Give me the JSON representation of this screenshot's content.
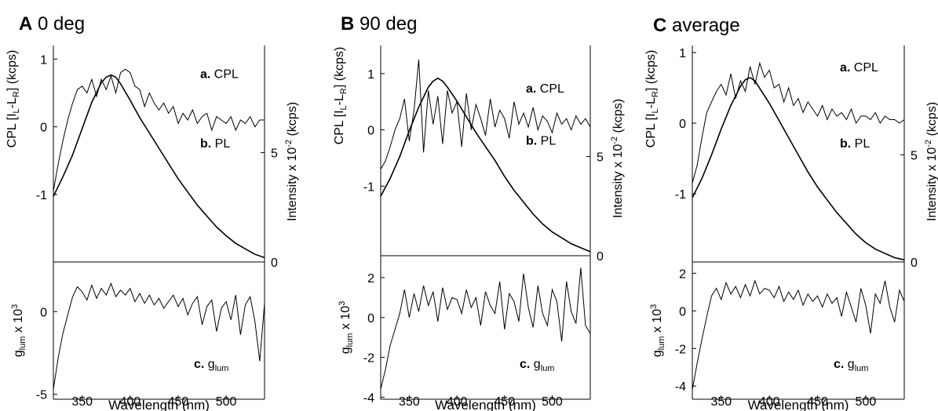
{
  "chart_data": [
    {
      "type": "line",
      "panel_letter": "A",
      "title": "0 deg",
      "xlabel": "Wavelength (nm)",
      "xlim": [
        320,
        540
      ],
      "x_ticks": [
        350,
        400,
        450,
        500
      ],
      "top": {
        "ylabel_left": "CPL [I",
        "ylabel_sub1": "L",
        "ylabel_mid": "-L",
        "ylabel_sub2": "R",
        "ylabel_end": "] (kcps)",
        "cpl_ylim": [
          -1.3,
          1.2
        ],
        "cpl_ticks": [
          1,
          0,
          -1
        ],
        "pl_ylim": [
          0,
          9.9
        ],
        "pl_ticks": [
          5,
          0
        ],
        "ylabel_right": "Intensity x 10",
        "ylabel_right_sup": "-2",
        "ylabel_right_end": " (kcps)",
        "series": [
          {
            "name": "CPL",
            "label_bold": "a.",
            "label_text": " CPL",
            "x": [
              320,
              325,
              330,
              335,
              340,
              345,
              350,
              355,
              360,
              365,
              370,
              375,
              380,
              385,
              390,
              395,
              400,
              405,
              410,
              415,
              420,
              425,
              430,
              435,
              440,
              445,
              450,
              455,
              460,
              465,
              470,
              475,
              480,
              485,
              490,
              495,
              500,
              505,
              510,
              515,
              520,
              525,
              530,
              535,
              540
            ],
            "values": [
              -0.95,
              -0.55,
              -0.2,
              0.1,
              0.35,
              0.55,
              0.6,
              0.5,
              0.7,
              0.45,
              0.7,
              0.55,
              0.75,
              0.5,
              0.8,
              0.85,
              0.8,
              0.6,
              0.55,
              0.3,
              0.5,
              0.35,
              0.25,
              0.35,
              0.2,
              0.3,
              0.05,
              0.2,
              0.1,
              0.25,
              0.05,
              0.15,
              0.2,
              -0.05,
              0.15,
              0.1,
              0.05,
              0.15,
              -0.05,
              0.1,
              0.05,
              0.15,
              0.0,
              0.1,
              0.1
            ]
          },
          {
            "name": "PL",
            "label_bold": "b.",
            "label_text": " PL",
            "x": [
              320,
              330,
              340,
              350,
              360,
              370,
              375,
              380,
              385,
              390,
              400,
              410,
              420,
              430,
              440,
              450,
              460,
              470,
              480,
              490,
              500,
              510,
              520,
              530,
              540
            ],
            "values": [
              3.0,
              3.9,
              4.9,
              6.1,
              7.3,
              8.2,
              8.45,
              8.55,
              8.45,
              8.15,
              7.4,
              6.6,
              5.9,
              5.2,
              4.5,
              3.8,
              3.2,
              2.6,
              2.1,
              1.6,
              1.2,
              0.85,
              0.6,
              0.35,
              0.2
            ]
          }
        ]
      },
      "bottom": {
        "ylabel_g": "g",
        "ylabel_sub": "lum",
        "ylabel_end": " x 10",
        "ylabel_sup": "3",
        "ylim": [
          -5.3,
          3.0
        ],
        "ticks": [
          0,
          -5
        ],
        "series": [
          {
            "name": "glum",
            "label_bold": "c.",
            "label_g": " g",
            "label_sub": "lum",
            "x": [
              320,
              325,
              330,
              335,
              340,
              345,
              350,
              355,
              360,
              365,
              370,
              375,
              380,
              385,
              390,
              395,
              400,
              405,
              410,
              415,
              420,
              425,
              430,
              435,
              440,
              445,
              450,
              455,
              460,
              465,
              470,
              475,
              480,
              485,
              490,
              495,
              500,
              505,
              510,
              515,
              520,
              525,
              530,
              535,
              540
            ],
            "values": [
              -4.7,
              -2.8,
              -1.3,
              -0.2,
              0.9,
              1.5,
              1.2,
              0.7,
              1.6,
              0.8,
              1.4,
              1.0,
              1.7,
              0.9,
              1.3,
              1.0,
              1.4,
              0.6,
              1.1,
              0.5,
              1.0,
              0.4,
              0.8,
              0.2,
              0.6,
              1.0,
              0.3,
              0.8,
              -0.2,
              0.5,
              0.9,
              -0.8,
              0.3,
              0.7,
              -1.2,
              0.2,
              0.6,
              -0.5,
              1.0,
              -1.4,
              0.4,
              0.9,
              -0.6,
              -3.0,
              0.5
            ]
          }
        ]
      }
    },
    {
      "type": "line",
      "panel_letter": "B",
      "title": "90 deg",
      "xlabel": "Wavelength (nm)",
      "xlim": [
        320,
        540
      ],
      "x_ticks": [
        350,
        400,
        450,
        500
      ],
      "top": {
        "ylabel_left": "CPL [I",
        "ylabel_sub1": "L",
        "ylabel_mid": "-L",
        "ylabel_sub2": "R",
        "ylabel_end": "] (kcps)",
        "cpl_ylim": [
          -1.4,
          1.5
        ],
        "cpl_ticks": [
          1,
          0,
          -1
        ],
        "pl_ylim": [
          0,
          10.6
        ],
        "pl_ticks": [
          5,
          0
        ],
        "ylabel_right": "Intensity x 10",
        "ylabel_right_sup": "-2",
        "ylabel_right_end": " (kcps)",
        "series": [
          {
            "name": "CPL",
            "label_bold": "a.",
            "label_text": " CPL",
            "x": [
              320,
              325,
              330,
              335,
              340,
              345,
              350,
              355,
              360,
              365,
              370,
              375,
              380,
              385,
              390,
              395,
              400,
              405,
              410,
              415,
              420,
              425,
              430,
              435,
              440,
              445,
              450,
              455,
              460,
              465,
              470,
              475,
              480,
              485,
              490,
              495,
              500,
              505,
              510,
              515,
              520,
              525,
              530,
              535,
              540
            ],
            "values": [
              -0.7,
              -0.55,
              -0.3,
              0.0,
              0.2,
              0.55,
              -0.2,
              0.35,
              1.25,
              -0.4,
              0.7,
              0.1,
              0.6,
              -0.25,
              0.7,
              0.3,
              0.5,
              -0.3,
              0.65,
              0.0,
              0.45,
              0.2,
              -0.1,
              0.55,
              0.05,
              0.35,
              0.2,
              -0.15,
              0.5,
              0.1,
              0.3,
              0.05,
              0.4,
              0.0,
              0.25,
              0.15,
              -0.05,
              0.3,
              0.1,
              0.2,
              0.0,
              0.25,
              0.1,
              0.2,
              0.05
            ]
          },
          {
            "name": "PL",
            "label_bold": "b.",
            "label_text": " PL",
            "x": [
              320,
              330,
              340,
              350,
              360,
              370,
              375,
              380,
              385,
              390,
              400,
              410,
              420,
              430,
              440,
              450,
              460,
              470,
              480,
              490,
              500,
              510,
              520,
              530,
              540
            ],
            "values": [
              3.0,
              3.9,
              5.0,
              6.3,
              7.5,
              8.5,
              8.8,
              8.95,
              8.8,
              8.5,
              7.8,
              7.0,
              6.2,
              5.5,
              4.8,
              4.0,
              3.3,
              2.7,
              2.1,
              1.6,
              1.2,
              0.9,
              0.6,
              0.4,
              0.2
            ]
          }
        ]
      },
      "bottom": {
        "ylabel_g": "g",
        "ylabel_sub": "lum",
        "ylabel_end": " x 10",
        "ylabel_sup": "3",
        "ylim": [
          -4.1,
          3.1
        ],
        "ticks": [
          2,
          0,
          -2,
          -4
        ],
        "series": [
          {
            "name": "glum",
            "label_bold": "c.",
            "label_g": " g",
            "label_sub": "lum",
            "x": [
              320,
              325,
              330,
              335,
              340,
              345,
              350,
              355,
              360,
              365,
              370,
              375,
              380,
              385,
              390,
              395,
              400,
              405,
              410,
              415,
              420,
              425,
              430,
              435,
              440,
              445,
              450,
              455,
              460,
              465,
              470,
              475,
              480,
              485,
              490,
              495,
              500,
              505,
              510,
              515,
              520,
              525,
              530,
              535,
              540
            ],
            "values": [
              -3.6,
              -2.6,
              -1.4,
              -0.6,
              0.2,
              1.4,
              0.0,
              1.2,
              0.3,
              1.6,
              0.6,
              1.3,
              -0.2,
              1.5,
              0.4,
              1.0,
              0.9,
              0.2,
              1.4,
              0.5,
              1.0,
              -0.4,
              1.3,
              0.6,
              0.2,
              1.8,
              -0.6,
              1.2,
              0.8,
              -0.2,
              2.2,
              0.5,
              -0.5,
              1.6,
              0.2,
              -0.4,
              1.4,
              0.8,
              -1.2,
              1.8,
              0.3,
              -0.3,
              2.5,
              -0.4,
              -0.8
            ]
          }
        ]
      }
    },
    {
      "type": "line",
      "panel_letter": "C",
      "title": "average",
      "xlabel": "Wavelength (nm)",
      "xlim": [
        320,
        540
      ],
      "x_ticks": [
        350,
        400,
        450,
        500
      ],
      "top": {
        "ylabel_left": "CPL [I",
        "ylabel_sub1": "L",
        "ylabel_mid": "-L",
        "ylabel_sub2": "R",
        "ylabel_end": "] (kcps)",
        "cpl_ylim": [
          -1.3,
          1.1
        ],
        "cpl_ticks": [
          1,
          0,
          -1
        ],
        "pl_ylim": [
          0,
          10.1
        ],
        "pl_ticks": [
          5,
          0
        ],
        "ylabel_right": "Intensity x 10",
        "ylabel_right_sup": "-2",
        "ylabel_right_end": " (kcps)",
        "series": [
          {
            "name": "CPL",
            "label_bold": "a.",
            "label_text": " CPL",
            "x": [
              320,
              325,
              330,
              335,
              340,
              345,
              350,
              355,
              360,
              365,
              370,
              375,
              380,
              385,
              390,
              395,
              400,
              405,
              410,
              415,
              420,
              425,
              430,
              435,
              440,
              445,
              450,
              455,
              460,
              465,
              470,
              475,
              480,
              485,
              490,
              495,
              500,
              505,
              510,
              515,
              520,
              525,
              530,
              535,
              540
            ],
            "values": [
              -0.85,
              -0.6,
              -0.2,
              0.15,
              0.3,
              0.45,
              0.55,
              0.4,
              0.7,
              0.35,
              0.6,
              0.45,
              0.8,
              0.55,
              0.85,
              0.65,
              0.75,
              0.5,
              0.55,
              0.3,
              0.5,
              0.25,
              0.35,
              0.15,
              0.3,
              0.2,
              0.1,
              0.25,
              0.05,
              0.2,
              0.1,
              0.15,
              0.05,
              0.2,
              0.0,
              0.1,
              0.1,
              0.05,
              0.15,
              0.0,
              0.1,
              0.05,
              0.05,
              0.0,
              0.05
            ]
          },
          {
            "name": "PL",
            "label_bold": "b.",
            "label_text": " PL",
            "x": [
              320,
              330,
              340,
              350,
              360,
              370,
              375,
              380,
              385,
              390,
              400,
              410,
              420,
              430,
              440,
              450,
              460,
              470,
              480,
              490,
              500,
              510,
              520,
              530,
              540
            ],
            "values": [
              3.0,
              3.9,
              5.0,
              6.2,
              7.3,
              8.2,
              8.5,
              8.6,
              8.45,
              8.1,
              7.4,
              6.6,
              5.8,
              5.0,
              4.2,
              3.5,
              2.9,
              2.3,
              1.8,
              1.3,
              0.9,
              0.6,
              0.4,
              0.2,
              0.1
            ]
          }
        ]
      },
      "bottom": {
        "ylabel_g": "g",
        "ylabel_sub": "lum",
        "ylabel_end": " x 10",
        "ylabel_sup": "3",
        "ylim": [
          -4.7,
          2.6
        ],
        "ticks": [
          2,
          0,
          -2,
          -4
        ],
        "series": [
          {
            "name": "glum",
            "label_bold": "c.",
            "label_g": " g",
            "label_sub": "lum",
            "x": [
              320,
              325,
              330,
              335,
              340,
              345,
              350,
              355,
              360,
              365,
              370,
              375,
              380,
              385,
              390,
              395,
              400,
              405,
              410,
              415,
              420,
              425,
              430,
              435,
              440,
              445,
              450,
              455,
              460,
              465,
              470,
              475,
              480,
              485,
              490,
              495,
              500,
              505,
              510,
              515,
              520,
              525,
              530,
              535,
              540
            ],
            "values": [
              -4.2,
              -2.8,
              -1.5,
              -0.3,
              0.8,
              1.2,
              0.6,
              1.5,
              0.9,
              1.3,
              0.7,
              1.4,
              0.8,
              1.6,
              0.9,
              1.2,
              1.1,
              0.7,
              1.3,
              0.5,
              1.0,
              0.6,
              1.1,
              0.3,
              0.9,
              0.5,
              0.8,
              0.2,
              0.9,
              0.4,
              0.7,
              -0.3,
              1.0,
              0.2,
              -0.6,
              1.2,
              0.3,
              -1.2,
              0.9,
              0.4,
              1.6,
              0.2,
              -0.6,
              1.1,
              0.5
            ]
          }
        ]
      }
    }
  ]
}
